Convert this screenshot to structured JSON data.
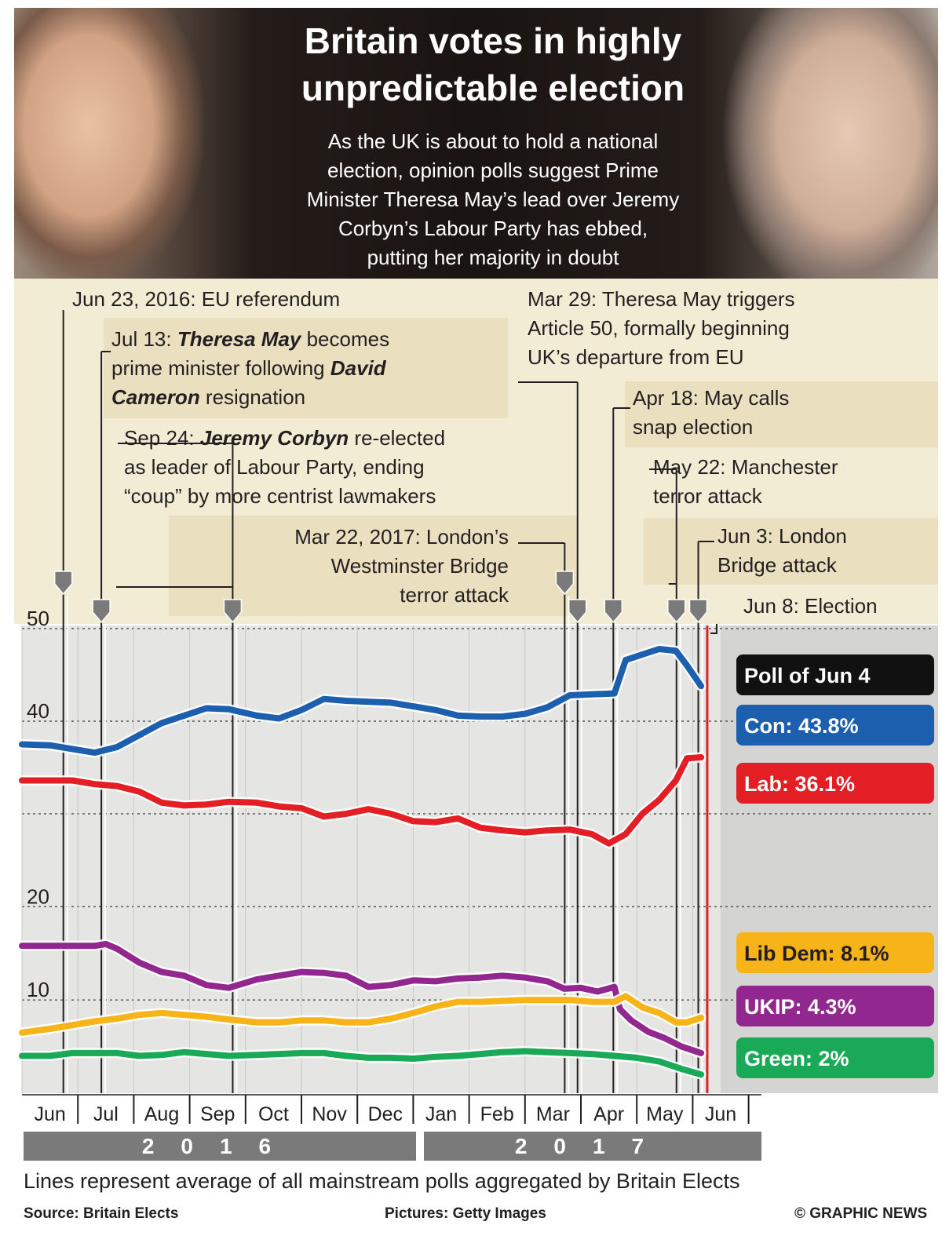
{
  "header": {
    "title_line1": "Britain votes in highly",
    "title_line2": "unpredictable election",
    "subtitle_lines": [
      "As the UK is about to hold a national",
      "election, opinion polls suggest Prime",
      "Minister Theresa May’s lead over Jeremy",
      "Corbyn’s Labour Party has ebbed,",
      "putting her majority in doubt"
    ]
  },
  "annotations": {
    "eu_ref": "Jun 23, 2016: EU referendum",
    "may_pm": {
      "date": "Jul 13:",
      "name1": "Theresa May",
      "t1": " becomes",
      "t2": "prime minister following ",
      "name2": "David",
      "name3": "Cameron",
      "t3": " resignation"
    },
    "corbyn": {
      "date": "Sep 24:",
      "name": "Jeremy Corbyn",
      "t1": " re-elected",
      "t2": "as leader of Labour Party, ending",
      "t3": "“coup” by more centrist lawmakers"
    },
    "westminster": [
      "Mar 22, 2017: London’s",
      "Westminster Bridge",
      "terror attack"
    ],
    "article50": [
      "Mar 29: Theresa May triggers",
      "Article 50, formally beginning",
      "UK’s departure from EU"
    ],
    "snap": [
      "Apr 18: May calls",
      "snap election"
    ],
    "manchester": [
      "May 22: Manchester",
      "terror attack"
    ],
    "london_bridge": [
      "Jun 3: London",
      "Bridge attack"
    ],
    "election": "Jun 8: Election"
  },
  "chart_data": {
    "type": "line",
    "y_ticks": [
      "50",
      "40",
      "20",
      "10"
    ],
    "ylim": [
      0,
      50
    ],
    "x_tick_labels": [
      "Jun",
      "Jul",
      "Aug",
      "Sep",
      "Oct",
      "Nov",
      "Dec",
      "Jan",
      "Feb",
      "Mar",
      "Apr",
      "May",
      "Jun"
    ],
    "years": [
      "2016",
      "2017"
    ],
    "x_start_month": 5.0,
    "poll_label": "Poll of Jun 4",
    "event_months": [
      5.74,
      6.42,
      8.77,
      14.71,
      14.94,
      15.58,
      16.71,
      17.1
    ],
    "election_month": 17.26,
    "series": [
      {
        "name": "Con",
        "label": "Con: 43.8%",
        "color": "#1c5fae",
        "points": [
          [
            5.0,
            37.5
          ],
          [
            5.5,
            37.4
          ],
          [
            5.9,
            37.0
          ],
          [
            6.3,
            36.6
          ],
          [
            6.7,
            37.2
          ],
          [
            7.1,
            38.5
          ],
          [
            7.5,
            39.8
          ],
          [
            7.9,
            40.6
          ],
          [
            8.3,
            41.4
          ],
          [
            8.7,
            41.3
          ],
          [
            9.2,
            40.6
          ],
          [
            9.6,
            40.3
          ],
          [
            10.0,
            41.2
          ],
          [
            10.4,
            42.4
          ],
          [
            10.8,
            42.2
          ],
          [
            11.2,
            42.1
          ],
          [
            11.6,
            42.0
          ],
          [
            12.0,
            41.6
          ],
          [
            12.4,
            41.2
          ],
          [
            12.8,
            40.6
          ],
          [
            13.2,
            40.5
          ],
          [
            13.6,
            40.5
          ],
          [
            14.0,
            40.8
          ],
          [
            14.4,
            41.5
          ],
          [
            14.8,
            42.8
          ],
          [
            15.2,
            42.9
          ],
          [
            15.6,
            43.0
          ],
          [
            15.8,
            46.6
          ],
          [
            16.1,
            47.2
          ],
          [
            16.4,
            47.8
          ],
          [
            16.7,
            47.6
          ],
          [
            16.9,
            46.0
          ],
          [
            17.15,
            43.8
          ]
        ]
      },
      {
        "name": "Lab",
        "label": "Lab: 36.1%",
        "color": "#e41e25",
        "points": [
          [
            5.0,
            33.6
          ],
          [
            5.5,
            33.6
          ],
          [
            5.9,
            33.6
          ],
          [
            6.3,
            33.2
          ],
          [
            6.7,
            33.0
          ],
          [
            7.1,
            32.4
          ],
          [
            7.5,
            31.2
          ],
          [
            7.9,
            30.9
          ],
          [
            8.3,
            31.0
          ],
          [
            8.7,
            31.3
          ],
          [
            9.2,
            31.2
          ],
          [
            9.6,
            30.8
          ],
          [
            10.0,
            30.6
          ],
          [
            10.4,
            29.7
          ],
          [
            10.8,
            30.0
          ],
          [
            11.2,
            30.5
          ],
          [
            11.6,
            30.0
          ],
          [
            12.0,
            29.2
          ],
          [
            12.4,
            29.1
          ],
          [
            12.8,
            29.5
          ],
          [
            13.2,
            28.5
          ],
          [
            13.6,
            28.2
          ],
          [
            14.0,
            28.0
          ],
          [
            14.4,
            28.2
          ],
          [
            14.8,
            28.3
          ],
          [
            15.2,
            27.8
          ],
          [
            15.5,
            26.8
          ],
          [
            15.8,
            27.8
          ],
          [
            16.1,
            30.0
          ],
          [
            16.4,
            31.5
          ],
          [
            16.7,
            33.6
          ],
          [
            16.9,
            36.0
          ],
          [
            17.15,
            36.1
          ]
        ]
      },
      {
        "name": "UKIP",
        "label": "UKIP: 4.3%",
        "color": "#92278f",
        "points": [
          [
            5.0,
            15.8
          ],
          [
            5.5,
            15.8
          ],
          [
            5.9,
            15.8
          ],
          [
            6.3,
            15.8
          ],
          [
            6.5,
            16.0
          ],
          [
            6.7,
            15.5
          ],
          [
            7.1,
            14.0
          ],
          [
            7.5,
            13.0
          ],
          [
            7.9,
            12.6
          ],
          [
            8.3,
            11.6
          ],
          [
            8.7,
            11.3
          ],
          [
            9.2,
            12.2
          ],
          [
            9.6,
            12.6
          ],
          [
            10.0,
            13.0
          ],
          [
            10.4,
            12.9
          ],
          [
            10.8,
            12.6
          ],
          [
            11.2,
            11.4
          ],
          [
            11.6,
            11.6
          ],
          [
            12.0,
            12.1
          ],
          [
            12.4,
            12.0
          ],
          [
            12.8,
            12.3
          ],
          [
            13.2,
            12.4
          ],
          [
            13.6,
            12.6
          ],
          [
            14.0,
            12.4
          ],
          [
            14.4,
            12.0
          ],
          [
            14.7,
            11.2
          ],
          [
            15.0,
            11.3
          ],
          [
            15.3,
            10.9
          ],
          [
            15.6,
            11.4
          ],
          [
            15.7,
            9.0
          ],
          [
            15.9,
            7.8
          ],
          [
            16.2,
            6.6
          ],
          [
            16.5,
            5.9
          ],
          [
            16.8,
            5.0
          ],
          [
            17.15,
            4.3
          ]
        ]
      },
      {
        "name": "Lib Dem",
        "label": "Lib Dem: 8.1%",
        "color": "#f7b418",
        "points": [
          [
            5.0,
            6.5
          ],
          [
            5.5,
            6.9
          ],
          [
            5.9,
            7.3
          ],
          [
            6.3,
            7.7
          ],
          [
            6.7,
            8.0
          ],
          [
            7.1,
            8.4
          ],
          [
            7.5,
            8.6
          ],
          [
            7.9,
            8.4
          ],
          [
            8.3,
            8.2
          ],
          [
            8.7,
            7.9
          ],
          [
            9.2,
            7.6
          ],
          [
            9.6,
            7.6
          ],
          [
            10.0,
            7.8
          ],
          [
            10.4,
            7.8
          ],
          [
            10.8,
            7.6
          ],
          [
            11.2,
            7.6
          ],
          [
            11.6,
            8.0
          ],
          [
            12.0,
            8.6
          ],
          [
            12.4,
            9.3
          ],
          [
            12.8,
            9.8
          ],
          [
            13.2,
            9.8
          ],
          [
            13.6,
            9.9
          ],
          [
            14.0,
            10.0
          ],
          [
            14.4,
            10.0
          ],
          [
            14.8,
            10.0
          ],
          [
            15.2,
            9.8
          ],
          [
            15.6,
            9.8
          ],
          [
            15.8,
            10.4
          ],
          [
            16.1,
            9.2
          ],
          [
            16.4,
            8.6
          ],
          [
            16.7,
            7.6
          ],
          [
            16.9,
            7.6
          ],
          [
            17.15,
            8.1
          ]
        ]
      },
      {
        "name": "Green",
        "label": "Green: 2%",
        "color": "#1aaa57",
        "points": [
          [
            5.0,
            4.0
          ],
          [
            5.5,
            4.0
          ],
          [
            5.9,
            4.3
          ],
          [
            6.3,
            4.3
          ],
          [
            6.7,
            4.3
          ],
          [
            7.1,
            4.0
          ],
          [
            7.5,
            4.1
          ],
          [
            7.9,
            4.4
          ],
          [
            8.3,
            4.2
          ],
          [
            8.7,
            4.0
          ],
          [
            9.2,
            4.1
          ],
          [
            9.6,
            4.2
          ],
          [
            10.0,
            4.3
          ],
          [
            10.4,
            4.3
          ],
          [
            10.8,
            4.0
          ],
          [
            11.2,
            3.8
          ],
          [
            11.6,
            3.8
          ],
          [
            12.0,
            3.7
          ],
          [
            12.4,
            3.9
          ],
          [
            12.8,
            4.0
          ],
          [
            13.2,
            4.2
          ],
          [
            13.6,
            4.4
          ],
          [
            14.0,
            4.5
          ],
          [
            14.4,
            4.4
          ],
          [
            14.8,
            4.3
          ],
          [
            15.2,
            4.2
          ],
          [
            15.6,
            4.0
          ],
          [
            16.0,
            3.8
          ],
          [
            16.4,
            3.4
          ],
          [
            16.8,
            2.6
          ],
          [
            17.15,
            2.0
          ]
        ]
      }
    ]
  },
  "footnote": "Lines represent average of all mainstream polls aggregated by Britain Elects",
  "credits": {
    "source": "Source: Britain Elects",
    "pictures": "Pictures: Getty Images",
    "agency": "© GRAPHIC NEWS"
  }
}
